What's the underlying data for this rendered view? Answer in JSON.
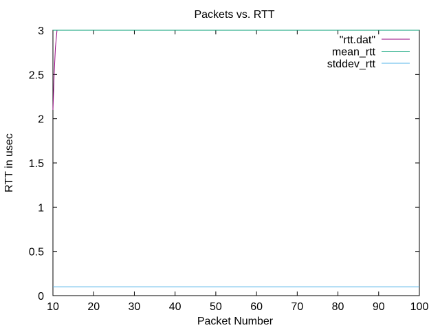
{
  "chart_data": {
    "type": "line",
    "title": "Packets vs. RTT",
    "xlabel": "Packet Number",
    "ylabel": "RTT in usec",
    "xlim": [
      10,
      100
    ],
    "ylim": [
      0,
      3
    ],
    "xticks": [
      10,
      20,
      30,
      40,
      50,
      60,
      70,
      80,
      90,
      100
    ],
    "yticks": [
      0,
      0.5,
      1,
      1.5,
      2,
      2.5,
      3
    ],
    "grid": false,
    "legend_position": "top-right",
    "series": [
      {
        "name": "\"rtt.dat\"",
        "color": "#94007F",
        "x": [
          10,
          10.3,
          10.6,
          11,
          100
        ],
        "y": [
          2.1,
          2.5,
          2.8,
          3,
          3
        ]
      },
      {
        "name": "mean_rtt",
        "color": "#009E73",
        "x": [
          10,
          100
        ],
        "y": [
          3,
          3
        ]
      },
      {
        "name": "stddev_rtt",
        "color": "#56B4E9",
        "x": [
          10,
          100
        ],
        "y": [
          0.1,
          0.1
        ]
      }
    ]
  }
}
